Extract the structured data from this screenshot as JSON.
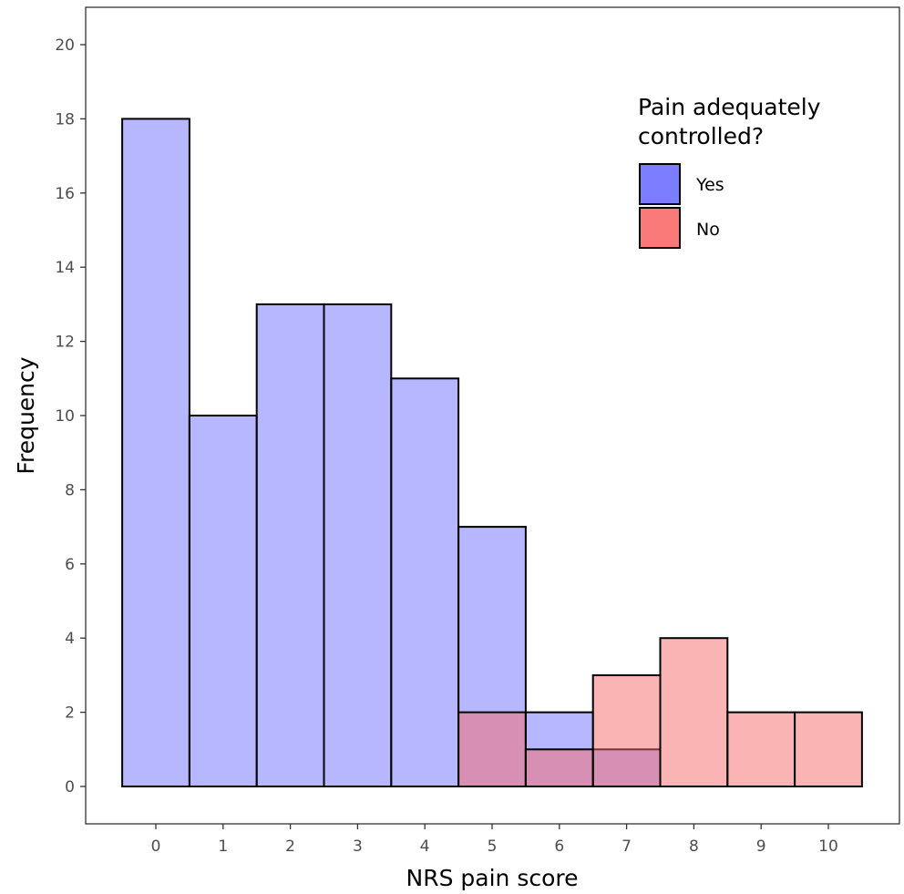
{
  "chart_data": {
    "type": "bar",
    "subtype": "overlapping-histogram",
    "xlabel": "NRS pain score",
    "ylabel": "Frequency",
    "x_ticks": [
      "0",
      "1",
      "2",
      "3",
      "4",
      "5",
      "6",
      "7",
      "8",
      "9",
      "10"
    ],
    "y_ticks": [
      "0",
      "2",
      "4",
      "6",
      "8",
      "10",
      "12",
      "14",
      "16",
      "18",
      "20"
    ],
    "xlim": [
      -0.5,
      10.5
    ],
    "ylim": [
      0,
      20
    ],
    "grid": false,
    "legend": {
      "title_lines": [
        "Pain adequately",
        "controlled?"
      ],
      "position": "top-right"
    },
    "series": [
      {
        "name": "Yes",
        "color": "#6f6fff",
        "fill_alpha": 0.5,
        "x": [
          0,
          1,
          2,
          3,
          4,
          5,
          6,
          7,
          8,
          9,
          10
        ],
        "values": [
          18,
          10,
          13,
          13,
          11,
          7,
          2,
          1,
          0,
          0,
          0
        ]
      },
      {
        "name": "No",
        "color": "#f86a6a",
        "fill_alpha": 0.5,
        "x": [
          0,
          1,
          2,
          3,
          4,
          5,
          6,
          7,
          8,
          9,
          10
        ],
        "values": [
          0,
          0,
          0,
          0,
          0,
          2,
          1,
          3,
          4,
          2,
          2
        ]
      }
    ]
  }
}
